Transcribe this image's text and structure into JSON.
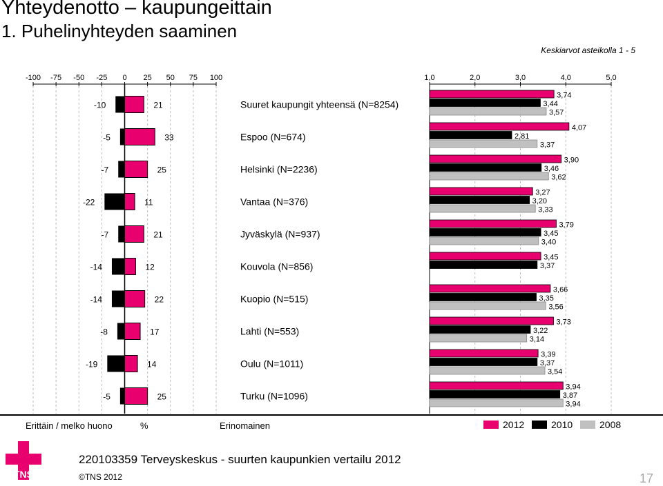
{
  "title": "Yhteydenotto – kaupungeittain",
  "subtitle": "1. Puhelinyhteyden saaminen",
  "note": "Keskiarvot asteikolla 1 - 5",
  "bottom_left_label": "Erittäin / melko huono",
  "bottom_percent": "%",
  "bottom_right_label": "Erinomainen",
  "footer": "220103359 Terveyskeskus - suurten kaupunkien vertailu 2012",
  "copyright": "©TNS 2012",
  "page_number": "17",
  "logo_text": "TNS",
  "colors": {
    "y2012": "#e8006e",
    "y2010": "#000000",
    "y2008": "#c0c0c0",
    "logo": "#e8006e"
  },
  "chart_data": [
    {
      "type": "bar",
      "orientation": "horizontal-diverging",
      "x_ticks": [
        "-100",
        "-75",
        "-50",
        "-25",
        "0",
        "25",
        "50",
        "75",
        "100"
      ],
      "xlim": [
        -100,
        100
      ],
      "categories": [
        "Suuret kaupungit yhteensä (N=8254)",
        "Espoo (N=674)",
        "Helsinki (N=2236)",
        "Vantaa (N=376)",
        "Jyväskylä (N=937)",
        "Kouvola (N=856)",
        "Kuopio (N=515)",
        "Lahti (N=553)",
        "Oulu (N=1011)",
        "Turku (N=1096)"
      ],
      "series": [
        {
          "name": "Erittäin / melko huono",
          "values": [
            -10,
            -5,
            -7,
            -22,
            -7,
            -14,
            -14,
            -8,
            -19,
            -5
          ],
          "labels": [
            "-10",
            "-5",
            "-7",
            "-22",
            "-7",
            "-14",
            "-14",
            "-8",
            "-19",
            "-5"
          ]
        },
        {
          "name": "Erinomainen",
          "values": [
            21,
            33,
            25,
            11,
            21,
            12,
            22,
            17,
            14,
            25
          ],
          "labels": [
            "21",
            "33",
            "25",
            "11",
            "21",
            "12",
            "22",
            "17",
            "14",
            "25"
          ]
        }
      ]
    },
    {
      "type": "bar",
      "orientation": "horizontal",
      "x_ticks": [
        "1,0",
        "2,0",
        "3,0",
        "4,0",
        "5,0"
      ],
      "xlim": [
        1,
        5
      ],
      "categories": [
        "Suuret kaupungit yhteensä (N=8254)",
        "Espoo (N=674)",
        "Helsinki (N=2236)",
        "Vantaa (N=376)",
        "Jyväskylä (N=937)",
        "Kouvola (N=856)",
        "Kuopio (N=515)",
        "Lahti (N=553)",
        "Oulu (N=1011)",
        "Turku (N=1096)"
      ],
      "series": [
        {
          "name": "2012",
          "values": [
            3.74,
            4.07,
            3.9,
            3.27,
            3.79,
            3.45,
            3.66,
            3.73,
            3.39,
            3.94
          ],
          "labels": [
            "3,74",
            "4,07",
            "3,90",
            "3,27",
            "3,79",
            "3,45",
            "3,66",
            "3,73",
            "3,39",
            "3,94"
          ]
        },
        {
          "name": "2010",
          "values": [
            3.44,
            2.81,
            3.46,
            3.2,
            3.45,
            3.37,
            3.35,
            3.22,
            3.37,
            3.87
          ],
          "labels": [
            "3,44",
            "2,81",
            "3,46",
            "3,20",
            "3,45",
            "3,37",
            "3,35",
            "3,22",
            "3,37",
            "3,87"
          ]
        },
        {
          "name": "2008",
          "values": [
            3.57,
            3.37,
            3.62,
            3.33,
            3.4,
            null,
            3.56,
            3.14,
            3.54,
            3.94
          ],
          "labels": [
            "3,57",
            "3,37",
            "3,62",
            "3,33",
            "3,40",
            "",
            "3,56",
            "3,14",
            "3,54",
            "3,94"
          ]
        }
      ],
      "legend_position": "bottom-right"
    }
  ]
}
